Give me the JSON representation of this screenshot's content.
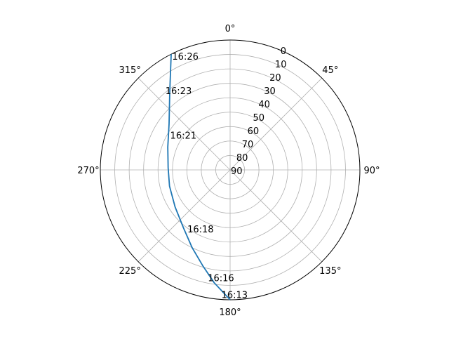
{
  "chart_data": {
    "type": "line",
    "projection": "polar",
    "theta_zero_location": "N",
    "theta_direction": "clockwise",
    "radial_axis": {
      "quantity": "elevation",
      "inverted": true,
      "range": [
        90,
        0
      ],
      "ticks": [
        0,
        10,
        20,
        30,
        40,
        50,
        60,
        70,
        80,
        90
      ],
      "tick_labels": [
        "0",
        "10",
        "20",
        "30",
        "40",
        "50",
        "60",
        "70",
        "80",
        "90"
      ]
    },
    "angular_axis": {
      "ticks": [
        0,
        45,
        90,
        135,
        180,
        225,
        270,
        315
      ],
      "tick_labels": [
        "0°",
        "45°",
        "90°",
        "135°",
        "180°",
        "225°",
        "270°",
        "315°"
      ]
    },
    "grid": true,
    "series": [
      {
        "color": "#1f77b4",
        "points": [
          {
            "azimuth": 180.0,
            "elevation": 0.0
          },
          {
            "azimuth": 188.0,
            "elevation": 11.0
          },
          {
            "azimuth": 196.0,
            "elevation": 21.0
          },
          {
            "azimuth": 206.0,
            "elevation": 30.0
          },
          {
            "azimuth": 219.0,
            "elevation": 38.5
          },
          {
            "azimuth": 236.0,
            "elevation": 44.0
          },
          {
            "azimuth": 255.0,
            "elevation": 46.5
          },
          {
            "azimuth": 272.0,
            "elevation": 47.0
          },
          {
            "azimuth": 290.0,
            "elevation": 44.0
          },
          {
            "azimuth": 307.0,
            "elevation": 37.0
          },
          {
            "azimuth": 322.0,
            "elevation": 22.0
          },
          {
            "azimuth": 333.0,
            "elevation": 0.0
          }
        ]
      }
    ],
    "annotations": [
      {
        "text": "16:13",
        "azimuth": 184.0,
        "elevation": 3.5
      },
      {
        "text": "16:16",
        "azimuth": 191.7,
        "elevation": 13.8
      },
      {
        "text": "16:18",
        "azimuth": 216.0,
        "elevation": 39.6
      },
      {
        "text": "16:21",
        "azimuth": 300.0,
        "elevation": 42.0
      },
      {
        "text": "16:23",
        "azimuth": 320.8,
        "elevation": 19.0
      },
      {
        "text": "16:26",
        "azimuth": 333.0,
        "elevation": 1.5
      }
    ]
  }
}
